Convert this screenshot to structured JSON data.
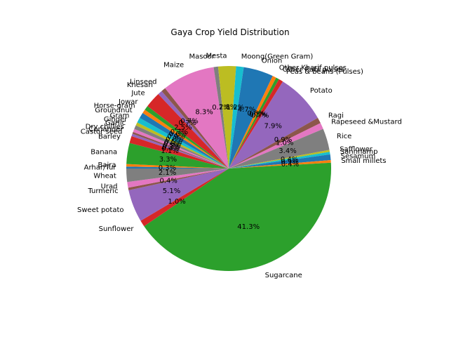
{
  "chart_data": {
    "type": "pie",
    "title": "Gaya Crop Yield Distribution",
    "start_angle_deg": 180,
    "direction": "clockwise",
    "slices": [
      {
        "label": "Arhar/Tur",
        "value": 0.3,
        "pct": "0.3%",
        "color": "#1f77b4"
      },
      {
        "label": "Bajra",
        "value": 0.4,
        "pct": "",
        "color": "#ff7f0e"
      },
      {
        "label": "Banana",
        "value": 3.3,
        "pct": "3.3%",
        "color": "#2ca02c"
      },
      {
        "label": "Barley",
        "value": 1.1,
        "pct": "1.1%",
        "color": "#d62728"
      },
      {
        "label": "Castor seed",
        "value": 0.4,
        "pct": "0.4%",
        "color": "#9467bd"
      },
      {
        "label": "Coriander",
        "value": 0.3,
        "pct": "0.3%",
        "color": "#8c564b"
      },
      {
        "label": "Dry chillies",
        "value": 0.5,
        "pct": "0.5%",
        "color": "#e377c2"
      },
      {
        "label": "Garlic",
        "value": 0.6,
        "pct": "0.6%",
        "color": "#7f7f7f"
      },
      {
        "label": "Ginger",
        "value": 0.5,
        "pct": "0.5%",
        "color": "#bcbd22"
      },
      {
        "label": "Gram",
        "value": 0.8,
        "pct": "0.8%",
        "color": "#17becf"
      },
      {
        "label": "Groundnut",
        "value": 0.9,
        "pct": "0.9%",
        "color": "#1f77b4"
      },
      {
        "label": "Horse-gram",
        "value": 0.6,
        "pct": "0.6%",
        "color": "#ff7f0e"
      },
      {
        "label": "Jowar",
        "value": 0.7,
        "pct": "0.7%",
        "color": "#2ca02c"
      },
      {
        "label": "Jute",
        "value": 2.5,
        "pct": "2.5%",
        "color": "#d62728"
      },
      {
        "label": "Khesari",
        "value": 0.7,
        "pct": "0.7%",
        "color": "#9467bd"
      },
      {
        "label": "Linseed",
        "value": 0.7,
        "pct": "0.7%",
        "color": "#8c564b"
      },
      {
        "label": "Maize",
        "value": 8.3,
        "pct": "8.3%",
        "color": "#e377c2"
      },
      {
        "label": "Masoor",
        "value": 0.7,
        "pct": "0.7%",
        "color": "#7f7f7f"
      },
      {
        "label": "Mesta",
        "value": 2.8,
        "pct": "2.8%",
        "color": "#bcbd22"
      },
      {
        "label": "Moong(Green Gram)",
        "value": 1.2,
        "pct": "1.2%",
        "color": "#17becf"
      },
      {
        "label": "Onion",
        "value": 4.7,
        "pct": "4.7%",
        "color": "#1f77b4"
      },
      {
        "label": "Other Kharif pulses",
        "value": 0.6,
        "pct": "0.6%",
        "color": "#ff7f0e"
      },
      {
        "label": "Other Rabi pulses",
        "value": 0.5,
        "pct": "0.5%",
        "color": "#2ca02c"
      },
      {
        "label": "Peas & beans (Pulses)",
        "value": 0.7,
        "pct": "0.7%",
        "color": "#d62728"
      },
      {
        "label": "Potato",
        "value": 7.9,
        "pct": "7.9%",
        "color": "#9467bd"
      },
      {
        "label": "Ragi",
        "value": 0.9,
        "pct": "0.9%",
        "color": "#8c564b"
      },
      {
        "label": "Rapeseed &Mustard",
        "value": 1.0,
        "pct": "1.0%",
        "color": "#e377c2"
      },
      {
        "label": "Rice",
        "value": 3.4,
        "pct": "3.4%",
        "color": "#7f7f7f"
      },
      {
        "label": "Safflower",
        "value": 0.3,
        "pct": "",
        "color": "#bcbd22"
      },
      {
        "label": "Sannhamp",
        "value": 0.4,
        "pct": "0.4%",
        "color": "#17becf"
      },
      {
        "label": "Sesamum",
        "value": 0.9,
        "pct": "0.9%",
        "color": "#1f77b4"
      },
      {
        "label": "Small millets",
        "value": 0.4,
        "pct": "0.4%",
        "color": "#ff7f0e"
      },
      {
        "label": "Sugarcane",
        "value": 41.3,
        "pct": "41.3%",
        "color": "#2ca02c"
      },
      {
        "label": "Sunflower",
        "value": 1.0,
        "pct": "1.0%",
        "color": "#d62728"
      },
      {
        "label": "Sweet potato",
        "value": 5.1,
        "pct": "5.1%",
        "color": "#9467bd"
      },
      {
        "label": "Turmeric",
        "value": 0.4,
        "pct": "0.4%",
        "color": "#8c564b"
      },
      {
        "label": "Urad",
        "value": 0.9,
        "pct": "",
        "color": "#e377c2"
      },
      {
        "label": "Wheat",
        "value": 2.1,
        "pct": "2.1%",
        "color": "#7f7f7f"
      }
    ]
  }
}
